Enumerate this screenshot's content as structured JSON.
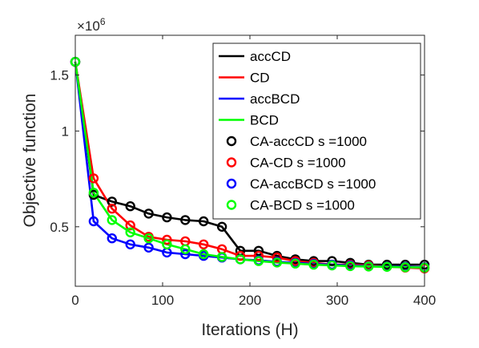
{
  "chart_data": {
    "type": "line",
    "xlabel": "Iterations (H)",
    "ylabel": "Objective function",
    "y_multiplier": "×10",
    "y_multiplier_exponent": "6",
    "xlim": [
      0,
      400
    ],
    "ylim": [
      0.325,
      2.0
    ],
    "y_scale": "log",
    "x_ticks": [
      0,
      100,
      200,
      300,
      400
    ],
    "x_tick_labels": [
      "0",
      "100",
      "200",
      "300",
      "400"
    ],
    "y_ticks": [
      0.5,
      1.0,
      1.5
    ],
    "y_tick_labels": [
      "0.5",
      "1",
      "1.5"
    ],
    "grid": false,
    "legend_position": "top-right",
    "series": [
      {
        "name": "accCD",
        "color": "#000000",
        "marker": "none",
        "x": [
          0,
          21,
          42,
          63,
          84,
          105,
          126,
          147,
          168,
          189,
          210,
          231,
          252,
          273,
          294,
          315,
          336,
          357,
          378,
          400
        ],
        "y": [
          1.65,
          0.63,
          0.6,
          0.58,
          0.55,
          0.535,
          0.525,
          0.52,
          0.5,
          0.42,
          0.42,
          0.405,
          0.395,
          0.39,
          0.39,
          0.385,
          0.38,
          0.38,
          0.38,
          0.38
        ]
      },
      {
        "name": "CD",
        "color": "#ff0000",
        "marker": "none",
        "x": [
          0,
          21,
          42,
          63,
          84,
          105,
          126,
          147,
          168,
          189,
          210,
          231,
          252,
          273,
          294,
          315,
          336,
          357,
          378,
          400
        ],
        "y": [
          1.65,
          0.71,
          0.57,
          0.505,
          0.465,
          0.455,
          0.45,
          0.44,
          0.425,
          0.405,
          0.405,
          0.4,
          0.39,
          0.385,
          0.38,
          0.38,
          0.378,
          0.375,
          0.372,
          0.37
        ]
      },
      {
        "name": "accBCD",
        "color": "#0000ff",
        "marker": "none",
        "x": [
          0,
          21,
          42,
          63,
          84,
          105,
          126,
          147,
          168,
          189,
          210,
          231,
          252,
          273,
          294,
          315,
          336,
          357,
          378,
          400
        ],
        "y": [
          1.65,
          0.52,
          0.46,
          0.44,
          0.43,
          0.415,
          0.41,
          0.405,
          0.4,
          0.395,
          0.392,
          0.388,
          0.385,
          0.382,
          0.38,
          0.378,
          0.376,
          0.375,
          0.374,
          0.373
        ]
      },
      {
        "name": "BCD",
        "color": "#00ff00",
        "marker": "none",
        "x": [
          0,
          21,
          42,
          63,
          84,
          105,
          126,
          147,
          168,
          189,
          210,
          231,
          252,
          273,
          294,
          315,
          336,
          357,
          378,
          400
        ],
        "y": [
          1.65,
          0.64,
          0.525,
          0.48,
          0.46,
          0.44,
          0.425,
          0.41,
          0.402,
          0.395,
          0.39,
          0.386,
          0.383,
          0.38,
          0.378,
          0.376,
          0.375,
          0.374,
          0.373,
          0.372
        ]
      },
      {
        "name": "CA-accCD s =1000",
        "color": "#000000",
        "marker": "circle",
        "x": [
          0,
          21,
          42,
          63,
          84,
          105,
          126,
          147,
          168,
          189,
          210,
          231,
          252,
          273,
          294,
          315,
          336,
          357,
          378,
          400
        ],
        "y": [
          1.65,
          0.63,
          0.6,
          0.58,
          0.55,
          0.535,
          0.525,
          0.52,
          0.5,
          0.42,
          0.42,
          0.405,
          0.395,
          0.39,
          0.39,
          0.385,
          0.38,
          0.38,
          0.38,
          0.38
        ]
      },
      {
        "name": "CA-CD s =1000",
        "color": "#ff0000",
        "marker": "circle",
        "x": [
          0,
          21,
          42,
          63,
          84,
          105,
          126,
          147,
          168,
          189,
          210,
          231,
          252,
          273,
          294,
          315,
          336,
          357,
          378,
          400
        ],
        "y": [
          1.65,
          0.71,
          0.57,
          0.505,
          0.465,
          0.455,
          0.45,
          0.44,
          0.425,
          0.405,
          0.405,
          0.4,
          0.39,
          0.385,
          0.38,
          0.38,
          0.378,
          0.375,
          0.372,
          0.37
        ]
      },
      {
        "name": "CA-accBCD s =1000",
        "color": "#0000ff",
        "marker": "circle",
        "x": [
          0,
          21,
          42,
          63,
          84,
          105,
          126,
          147,
          168,
          189,
          210,
          231,
          252,
          273,
          294,
          315,
          336,
          357,
          378,
          400
        ],
        "y": [
          1.65,
          0.52,
          0.46,
          0.44,
          0.43,
          0.415,
          0.41,
          0.405,
          0.4,
          0.395,
          0.392,
          0.388,
          0.385,
          0.382,
          0.38,
          0.378,
          0.376,
          0.375,
          0.374,
          0.373
        ]
      },
      {
        "name": "CA-BCD s =1000",
        "color": "#00ff00",
        "marker": "circle",
        "x": [
          0,
          21,
          42,
          63,
          84,
          105,
          126,
          147,
          168,
          189,
          210,
          231,
          252,
          273,
          294,
          315,
          336,
          357,
          378,
          400
        ],
        "y": [
          1.65,
          0.64,
          0.525,
          0.48,
          0.46,
          0.44,
          0.425,
          0.41,
          0.402,
          0.395,
          0.39,
          0.386,
          0.383,
          0.38,
          0.378,
          0.376,
          0.375,
          0.374,
          0.373,
          0.372
        ]
      }
    ]
  }
}
